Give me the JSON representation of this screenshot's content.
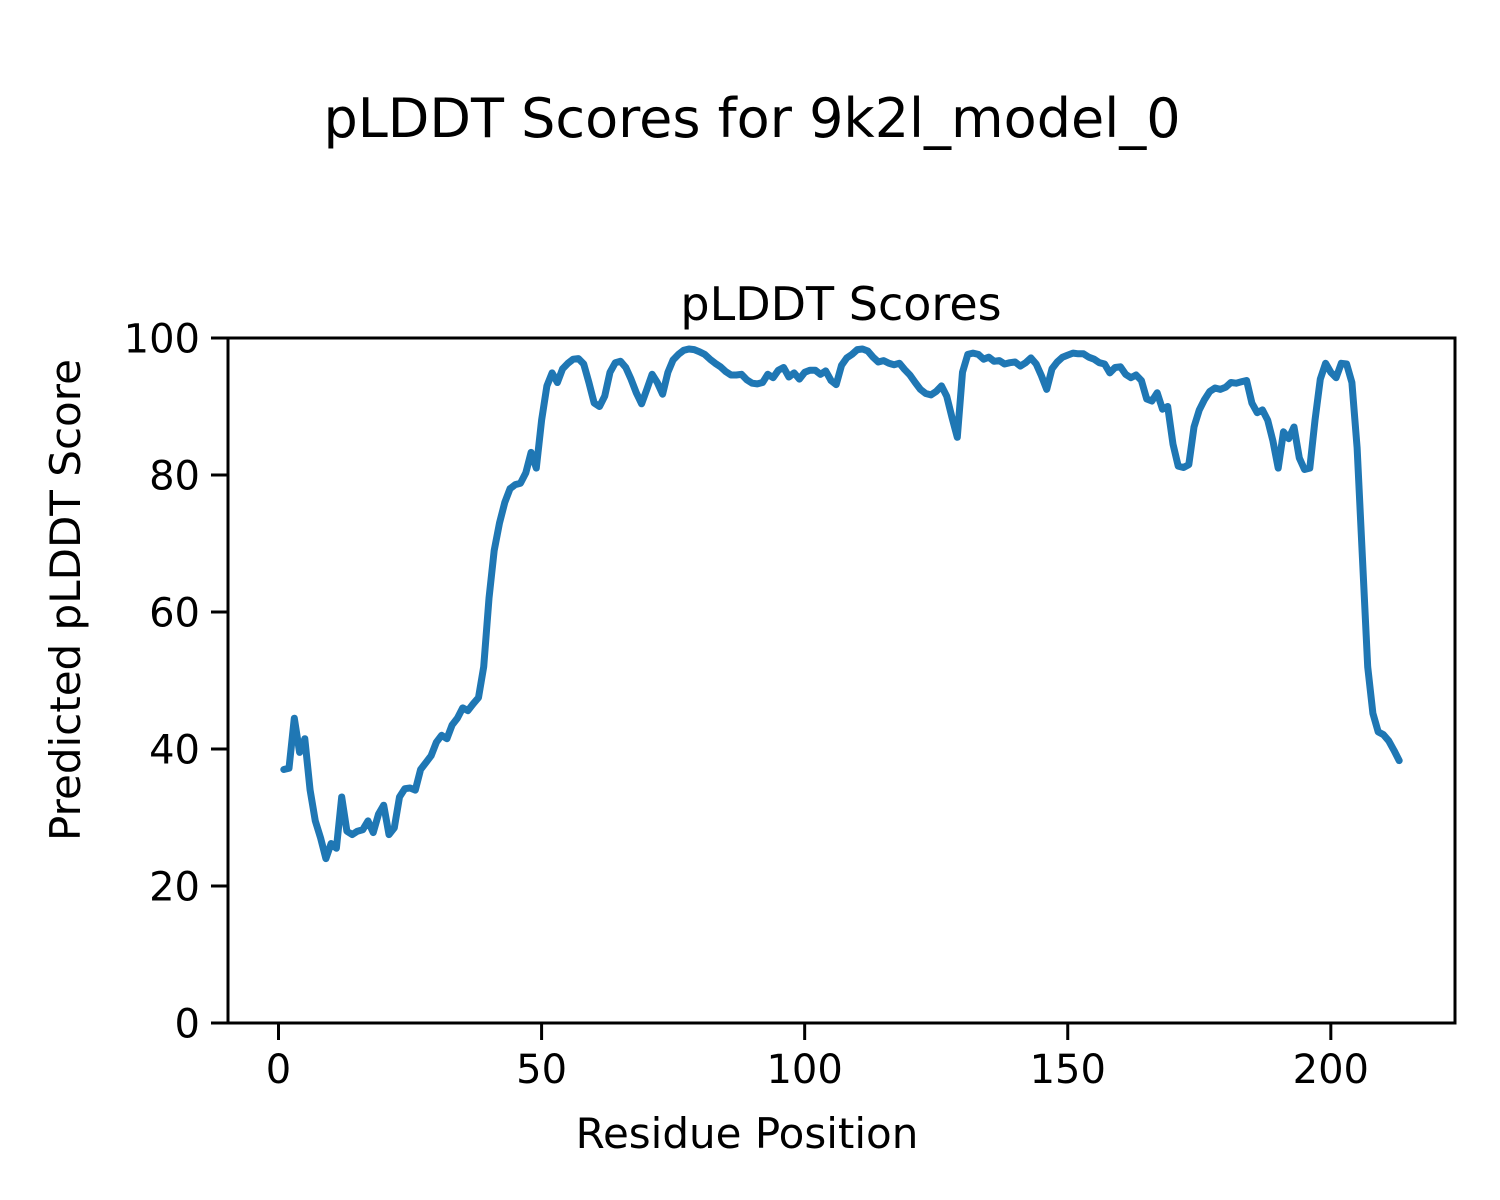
{
  "figure": {
    "suptitle": "pLDDT Scores for 9k2l_model_0",
    "axes_title": "pLDDT Scores",
    "xlabel": "Residue Position",
    "ylabel": "Predicted pLDDT Score"
  },
  "chart_data": {
    "type": "line",
    "title": "pLDDT Scores",
    "suptitle": "pLDDT Scores for 9k2l_model_0",
    "xlabel": "Residue Position",
    "ylabel": "Predicted pLDDT Score",
    "legend": "none",
    "grid": false,
    "line_color": "#1f77b4",
    "axis_color": "#000000",
    "xlim": [
      -9.6,
      223.6
    ],
    "ylim": [
      0,
      100
    ],
    "xticks": [
      0,
      50,
      100,
      150,
      200
    ],
    "yticks": [
      0,
      20,
      40,
      60,
      80,
      100
    ],
    "x_start": 1,
    "x_step": 1,
    "series_name": "pLDDT per residue",
    "values": [
      37.0,
      37.2,
      44.5,
      39.5,
      41.5,
      34.0,
      29.5,
      27.0,
      24.0,
      26.2,
      25.5,
      33.0,
      28.0,
      27.5,
      28.0,
      28.2,
      29.5,
      27.8,
      30.5,
      31.8,
      27.5,
      28.5,
      33.0,
      34.2,
      34.3,
      34.0,
      37.0,
      38.0,
      39.0,
      41.0,
      42.0,
      41.5,
      43.5,
      44.5,
      46.0,
      45.6,
      46.6,
      47.5,
      52.0,
      62.0,
      69.0,
      73.0,
      76.0,
      78.0,
      78.6,
      78.8,
      80.3,
      83.3,
      81.0,
      88.0,
      93.0,
      94.9,
      93.5,
      95.5,
      96.3,
      96.9,
      97.0,
      96.2,
      93.5,
      90.5,
      90.0,
      91.5,
      95.0,
      96.4,
      96.6,
      95.7,
      94.0,
      92.0,
      90.4,
      92.5,
      94.7,
      93.5,
      91.8,
      95.0,
      96.8,
      97.6,
      98.2,
      98.4,
      98.3,
      98.0,
      97.6,
      96.9,
      96.3,
      95.8,
      95.1,
      94.6,
      94.6,
      94.7,
      93.9,
      93.4,
      93.3,
      93.5,
      94.7,
      94.2,
      95.3,
      95.7,
      94.3,
      94.9,
      94.0,
      95.0,
      95.3,
      95.3,
      94.7,
      95.2,
      93.8,
      93.2,
      96.0,
      97.1,
      97.6,
      98.3,
      98.4,
      98.1,
      97.2,
      96.5,
      96.7,
      96.3,
      96.1,
      96.3,
      95.4,
      94.6,
      93.5,
      92.5,
      91.9,
      91.7,
      92.2,
      93.0,
      91.5,
      88.4,
      85.5,
      95.0,
      97.6,
      97.8,
      97.6,
      96.9,
      97.2,
      96.6,
      96.7,
      96.2,
      96.4,
      96.5,
      95.9,
      96.4,
      97.1,
      96.2,
      94.5,
      92.5,
      95.5,
      96.5,
      97.2,
      97.5,
      97.8,
      97.7,
      97.7,
      97.2,
      96.9,
      96.4,
      96.2,
      94.9,
      95.7,
      95.8,
      94.7,
      94.2,
      94.6,
      93.8,
      91.1,
      90.8,
      92.0,
      89.6,
      90.0,
      84.5,
      81.3,
      81.1,
      81.5,
      87.0,
      89.5,
      91.0,
      92.2,
      92.7,
      92.5,
      92.8,
      93.5,
      93.4,
      93.6,
      93.8,
      90.5,
      89.1,
      89.5,
      88.0,
      85.0,
      81.0,
      86.3,
      85.3,
      87.0,
      82.5,
      80.8,
      81.0,
      88.0,
      94.0,
      96.3,
      95.0,
      94.2,
      96.3,
      96.2,
      93.5,
      84.0,
      68.0,
      52.0,
      45.2,
      42.5,
      42.1,
      41.2,
      39.8,
      38.3
    ]
  }
}
